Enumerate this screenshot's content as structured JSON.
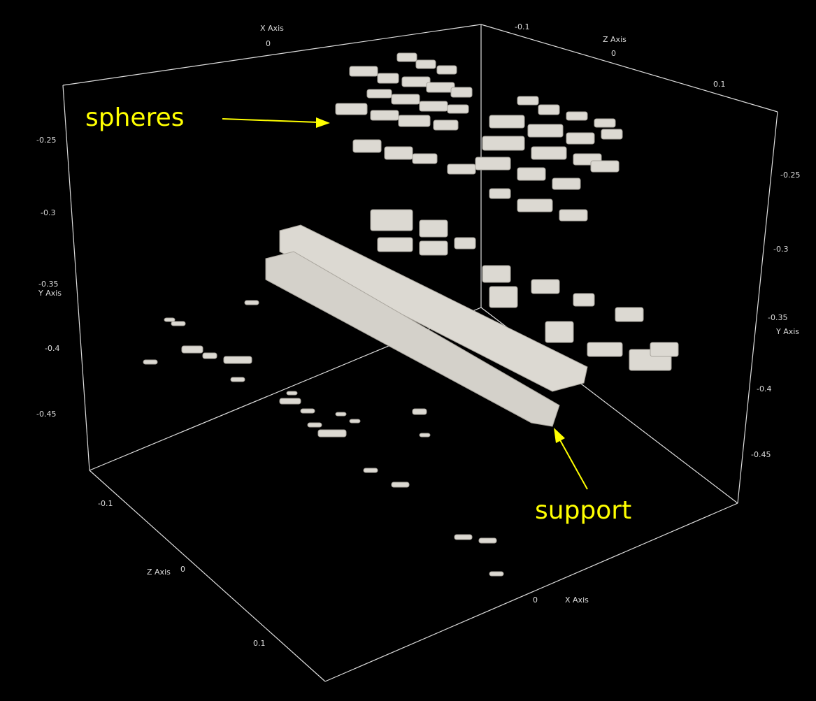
{
  "axes": {
    "top_x": {
      "title": "X Axis",
      "ticks": [
        "0"
      ]
    },
    "top_z": {
      "title": "Z Axis",
      "ticks": [
        "-0.1",
        "0",
        "0.1"
      ]
    },
    "left_y": {
      "title": "Y Axis",
      "ticks": [
        "-0.25",
        "-0.3",
        "-0.35",
        "-0.4",
        "-0.45"
      ]
    },
    "right_y": {
      "title": "Y Axis",
      "ticks": [
        "-0.25",
        "-0.3",
        "-0.35",
        "-0.4",
        "-0.45"
      ]
    },
    "bottom_z": {
      "title": "Z Axis",
      "ticks": [
        "-0.1",
        "0",
        "0.1"
      ]
    },
    "bottom_x": {
      "title": "X Axis",
      "ticks": [
        "0"
      ]
    }
  },
  "annotations": [
    "spheres",
    "support"
  ]
}
